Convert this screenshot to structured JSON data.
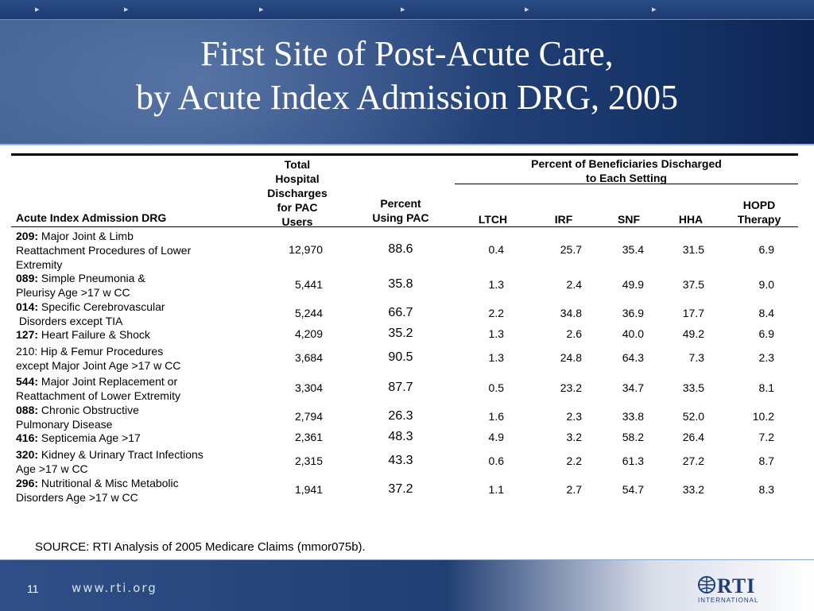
{
  "slide": {
    "title_line1": "First Site of Post-Acute Care,",
    "title_line2": "by Acute Index Admission DRG, 2005",
    "source": "SOURCE: RTI Analysis of 2005 Medicare Claims (mmor075b).",
    "page_number": "11",
    "url": "www.rti.org",
    "logo_text": "RTI",
    "logo_subtext": "INTERNATIONAL"
  },
  "table": {
    "col_drg": "Acute Index Admission DRG",
    "col_total": [
      "Total",
      "Hospital",
      "Discharges",
      "for PAC",
      "Users"
    ],
    "col_percent": [
      "Percent",
      "Using PAC"
    ],
    "group_header": [
      "Percent of Beneficiaries Discharged",
      "to Each Setting"
    ],
    "col_ltch": "LTCH",
    "col_irf": "IRF",
    "col_snf": "SNF",
    "col_hha": "HHA",
    "col_hopd": [
      "HOPD",
      "Therapy"
    ],
    "rows": [
      {
        "code": "209:",
        "desc": [
          "Major Joint & Limb",
          "Reattachment Procedures of Lower",
          "Extremity"
        ],
        "total": "12,970",
        "pct": "88.6",
        "ltch": "0.4",
        "irf": "25.7",
        "snf": "35.4",
        "hha": "31.5",
        "hopd": "6.9"
      },
      {
        "code": "089:",
        "desc": [
          "Simple Pneumonia &",
          "Pleurisy Age >17 w CC"
        ],
        "total": "5,441",
        "pct": "35.8",
        "ltch": "1.3",
        "irf": "2.4",
        "snf": "49.9",
        "hha": "37.5",
        "hopd": "9.0"
      },
      {
        "code": "014:",
        "desc": [
          "Specific Cerebrovascular",
          " Disorders except TIA"
        ],
        "total": "5,244",
        "pct": "66.7",
        "ltch": "2.2",
        "irf": "34.8",
        "snf": "36.9",
        "hha": "17.7",
        "hopd": "8.4"
      },
      {
        "code": "127:",
        "desc": [
          "Heart Failure & Shock"
        ],
        "total": "4,209",
        "pct": "35.2",
        "ltch": "1.3",
        "irf": "2.6",
        "snf": "40.0",
        "hha": "49.2",
        "hopd": "6.9"
      },
      {
        "code": "",
        "desc": [
          "210: Hip & Femur Procedures",
          "except Major Joint Age >17 w CC"
        ],
        "total": "3,684",
        "pct": "90.5",
        "ltch": "1.3",
        "irf": "24.8",
        "snf": "64.3",
        "hha": "7.3",
        "hopd": "2.3"
      },
      {
        "code": "544:",
        "desc": [
          "Major Joint Replacement or",
          "Reattachment of Lower Extremity"
        ],
        "total": "3,304",
        "pct": "87.7",
        "ltch": "0.5",
        "irf": "23.2",
        "snf": "34.7",
        "hha": "33.5",
        "hopd": "8.1"
      },
      {
        "code": "088:",
        "desc": [
          "Chronic Obstructive",
          "Pulmonary Disease"
        ],
        "total": "2,794",
        "pct": "26.3",
        "ltch": "1.6",
        "irf": "2.3",
        "snf": "33.8",
        "hha": "52.0",
        "hopd": "10.2"
      },
      {
        "code": "416:",
        "desc": [
          "Septicemia Age >17"
        ],
        "total": "2,361",
        "pct": "48.3",
        "ltch": "4.9",
        "irf": "3.2",
        "snf": "58.2",
        "hha": "26.4",
        "hopd": "7.2"
      },
      {
        "code": "320:",
        "desc": [
          "Kidney & Urinary Tract Infections",
          "Age >17 w CC"
        ],
        "total": "2,315",
        "pct": "43.3",
        "ltch": "0.6",
        "irf": "2.2",
        "snf": "61.3",
        "hha": "27.2",
        "hopd": "8.7"
      },
      {
        "code": "296:",
        "desc": [
          "Nutritional & Misc Metabolic",
          "Disorders Age >17 w CC"
        ],
        "total": "1,941",
        "pct": "37.2",
        "ltch": "1.1",
        "irf": "2.7",
        "snf": "54.7",
        "hha": "33.2",
        "hopd": "8.3"
      }
    ]
  }
}
